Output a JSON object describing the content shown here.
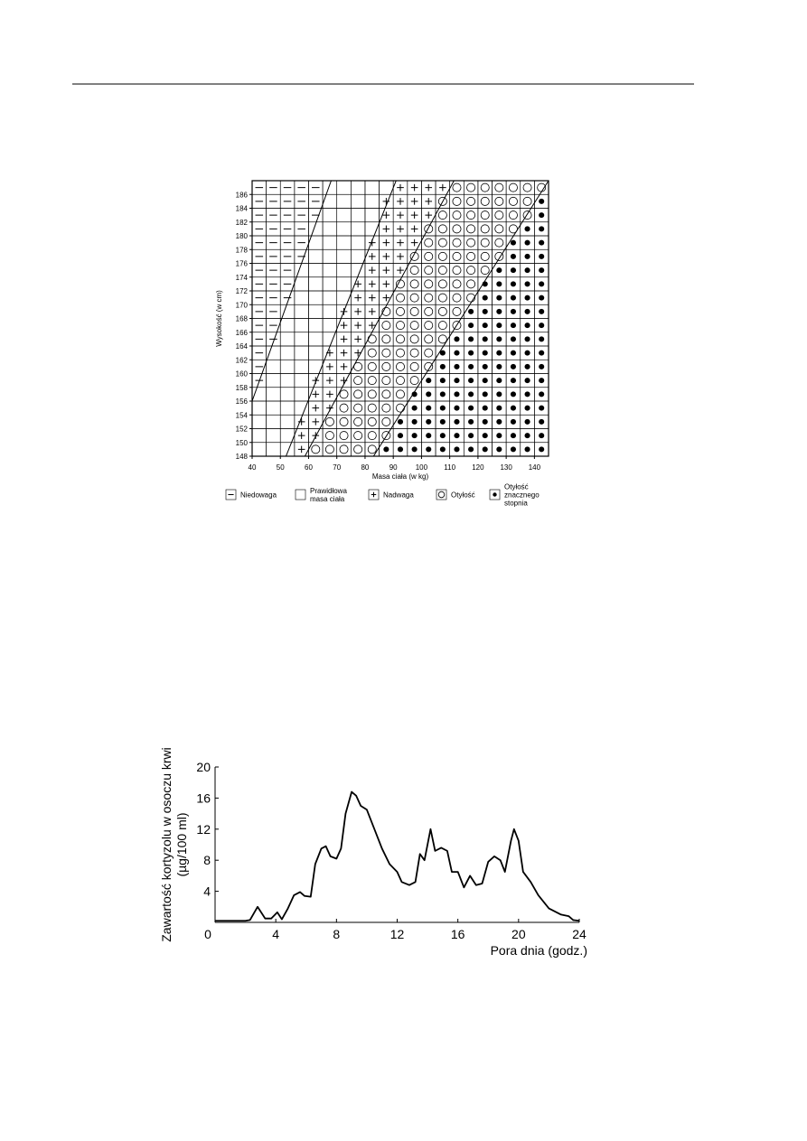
{
  "chart_data": [
    {
      "type": "grid",
      "xlabel": "Masa ciała (w kg)",
      "ylabel": "Wysokość  (w cm)",
      "xlim": [
        40,
        145
      ],
      "ylim": [
        148,
        188
      ],
      "xticks": [
        40,
        50,
        60,
        70,
        80,
        90,
        100,
        110,
        120,
        130,
        140
      ],
      "yticks": [
        148,
        150,
        152,
        154,
        156,
        158,
        160,
        162,
        164,
        166,
        168,
        170,
        172,
        174,
        176,
        178,
        180,
        182,
        184,
        186
      ],
      "cell_width": 5,
      "cell_height": 2,
      "grid_rows": [
        "___+oooooxxxxxxxxxxxx",
        "___++oooooxxxxxxxxxxx",
        "___++oooooxxxxxxxxxxx",
        "____++oooooxxxxxxxxxx",
        "____++oooooxxxxxxxxxx",
        "-___+++oooooxxxxxxxxx",
        "-____++ooooooxxxxxxxx",
        "-____+++oooooxxxxxxxx",
        "--____++ooooooxxxxxxx",
        "--____+++ooooooxxxxxx",
        "--____+++ooooooxxxxxx",
        "---____+++ooooooxxxxx",
        "---____+++ooooooxxxxx",
        "---_____+++ooooooxxxx",
        "----____+++oooooooxxx",
        "----____++++ooooooxxx",
        "----_____+++oooooooxx",
        "-----____++++ooooooox",
        "-----____++++ooooooox",
        "-----_____++++ooooooo"
      ],
      "boundary_lines": [
        [
          [
            40,
            156
          ],
          [
            68,
            188
          ]
        ],
        [
          [
            52,
            148
          ],
          [
            91,
            188
          ]
        ],
        [
          [
            58.7,
            148
          ],
          [
            111.5,
            188
          ]
        ],
        [
          [
            83,
            148
          ],
          [
            145,
            188
          ]
        ]
      ],
      "legend": [
        {
          "code": "-",
          "lines": [
            "Niedowaga"
          ]
        },
        {
          "code": "_",
          "lines": [
            "Prawidłowa",
            "masa ciała"
          ]
        },
        {
          "code": "+",
          "lines": [
            "Nadwaga"
          ]
        },
        {
          "code": "o",
          "lines": [
            "Otyłość"
          ]
        },
        {
          "code": "x",
          "lines": [
            "Otyłość",
            "znacznego",
            "stopnia"
          ]
        }
      ]
    },
    {
      "type": "line",
      "xlabel": "Pora dnia (godz.)",
      "ylabel": [
        "Zawartość kortyzolu w osoczu krwi",
        "(µg/100 ml)"
      ],
      "xlim": [
        0,
        24
      ],
      "ylim": [
        0,
        20
      ],
      "xticks": [
        0,
        4,
        8,
        12,
        16,
        20,
        24
      ],
      "yticks": [
        4,
        8,
        12,
        16,
        20
      ],
      "color": "#000000",
      "x": [
        0,
        1,
        2,
        2.3,
        2.8,
        3.3,
        3.7,
        4.1,
        4.4,
        4.8,
        5.2,
        5.6,
        5.9,
        6.3,
        6.6,
        7.0,
        7.3,
        7.6,
        8.0,
        8.3,
        8.6,
        9.0,
        9.3,
        9.6,
        10.0,
        10.5,
        11.0,
        11.5,
        12.0,
        12.3,
        12.8,
        13.2,
        13.5,
        13.8,
        14.2,
        14.5,
        14.9,
        15.3,
        15.6,
        16.0,
        16.4,
        16.8,
        17.2,
        17.6,
        18.0,
        18.4,
        18.8,
        19.1,
        19.5,
        19.7,
        20.0,
        20.3,
        20.8,
        21.3,
        22.0,
        22.8,
        23.3,
        23.6,
        24
      ],
      "values": [
        0.2,
        0.2,
        0.2,
        0.3,
        2.0,
        0.5,
        0.5,
        1.3,
        0.4,
        1.8,
        3.5,
        3.9,
        3.4,
        3.3,
        7.5,
        9.5,
        9.8,
        8.5,
        8.2,
        9.5,
        14,
        16.8,
        16.3,
        15,
        14.5,
        12,
        9.5,
        7.5,
        6.5,
        5.2,
        4.8,
        5.2,
        8.8,
        8.0,
        12,
        9.2,
        9.6,
        9.2,
        6.5,
        6.5,
        4.5,
        6.0,
        4.8,
        5.0,
        7.8,
        8.5,
        8.0,
        6.5,
        10.5,
        12,
        10.5,
        6.5,
        5.2,
        3.5,
        1.8,
        1.0,
        0.8,
        0.3,
        0.2
      ]
    }
  ]
}
